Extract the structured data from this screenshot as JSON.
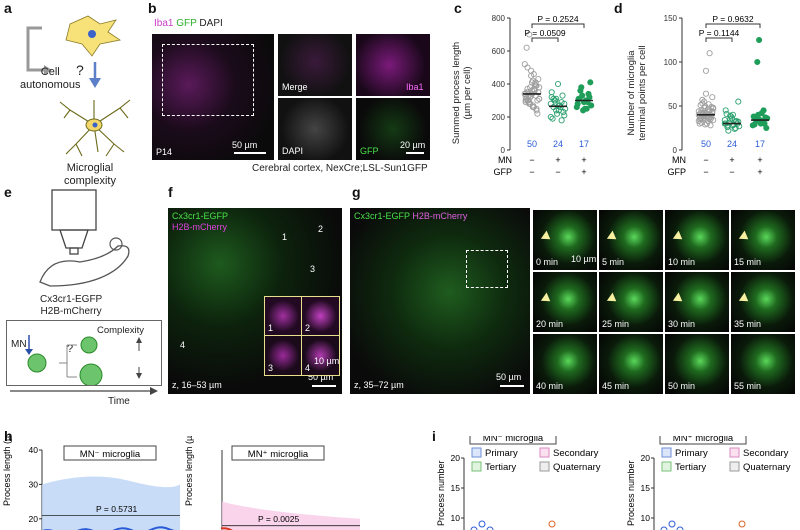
{
  "panels": {
    "a": {
      "label": "a",
      "cell_autonomous": [
        "Cell",
        "autonomous"
      ],
      "question": "?",
      "microglial_complexity": [
        "Microglial",
        "complexity"
      ]
    },
    "b": {
      "label": "b",
      "channels": {
        "iba1": "Iba1",
        "gfp": "GFP",
        "dapi": "DAPI"
      },
      "age": "P14",
      "scale_main": "50 µm",
      "merge": "Merge",
      "iba1": "Iba1",
      "dapi": "DAPI",
      "gfp": "GFP",
      "scale_small": "20 µm",
      "caption": "Cerebral cortex, NexCre;LSL-Sun1GFP"
    },
    "c": {
      "label": "c",
      "ylabel": [
        "Summed process length",
        "(µm per cell)"
      ],
      "p1": "P = 0.0509",
      "p2": "P = 0.2524",
      "ns": [
        "50",
        "24",
        "17"
      ],
      "mn_label": "MN",
      "gfp_label": "GFP",
      "mn_signs": [
        "−",
        "+",
        "+"
      ],
      "gfp_signs": [
        "−",
        "−",
        "+"
      ]
    },
    "d": {
      "label": "d",
      "ylabel": [
        "Number of microglia",
        "terminal points per cell"
      ],
      "p1": "P = 0.1144",
      "p2": "P = 0.9632",
      "ns": [
        "50",
        "24",
        "17"
      ],
      "mn_label": "MN",
      "gfp_label": "GFP",
      "mn_signs": [
        "−",
        "+",
        "+"
      ],
      "gfp_signs": [
        "−",
        "−",
        "+"
      ]
    },
    "e": {
      "label": "e",
      "mouse": [
        "Cx3cr1-EGFP",
        "H2B-mCherry"
      ],
      "mn": "MN",
      "complexity": "Complexity",
      "question": "?",
      "time": "Time"
    },
    "f": {
      "label": "f",
      "line1": "Cx3cr1-EGFP",
      "line2": "H2B-mCherry",
      "z": "z, 16–53 µm",
      "scale": "50 µm",
      "inset_scale": "10 µm",
      "insets": [
        "1",
        "2",
        "3",
        "4"
      ],
      "markers": [
        "1",
        "2",
        "3",
        "4"
      ]
    },
    "g": {
      "label": "g",
      "line1a": "Cx3cr1-EGFP",
      "line1b": "H2B-mCherry",
      "z": "z, 35–72 µm",
      "scale": "50 µm",
      "tile_scale": "10 µm",
      "times": [
        "0 min",
        "5 min",
        "10 min",
        "15 min",
        "20 min",
        "25 min",
        "30 min",
        "35 min",
        "40 min",
        "45 min",
        "50 min",
        "55 min"
      ]
    },
    "h": {
      "label": "h",
      "left_title": "MN⁻ microglia",
      "right_title": "MN⁺ microglia",
      "ylabel": "Process length (µm)",
      "p_left": "P = 0.5731",
      "p_right": "P = 0.0025",
      "ticks": [
        "40",
        "30",
        "20"
      ]
    },
    "i": {
      "label": "i",
      "left_title": "MN⁻ microglia",
      "right_title": "MN⁺ microglia",
      "ylabel": "Process number",
      "legend": [
        "Primary",
        "Secondary",
        "Tertiary",
        "Quaternary"
      ],
      "ticks": [
        "20",
        "15",
        "10"
      ]
    }
  },
  "chart_data": [
    {
      "type": "scatter",
      "panel": "c",
      "title": "",
      "ylabel": "Summed process length (µm per cell)",
      "ylim": [
        0,
        800
      ],
      "yticks": [
        0,
        200,
        400,
        600,
        800
      ],
      "categories": [
        "MN− GFP−",
        "MN+ GFP−",
        "MN+ GFP+"
      ],
      "series": [
        {
          "values": [
            520,
            300,
            380,
            260,
            410,
            350,
            290,
            330,
            450,
            370,
            240,
            310,
            620,
            280,
            360,
            400,
            220,
            340,
            500,
            320,
            270,
            390,
            430,
            300,
            350,
            330,
            460,
            250,
            380,
            310,
            290,
            410,
            360,
            300,
            340,
            370,
            280,
            420,
            330,
            350,
            320,
            300,
            480,
            260,
            390,
            310,
            350,
            700,
            340,
            360
          ]
        },
        {
          "values": [
            200,
            260,
            310,
            240,
            180,
            280,
            350,
            300,
            220,
            270,
            330,
            250,
            190,
            300,
            400,
            260,
            230,
            280,
            310,
            240,
            270,
            290,
            210,
            320
          ]
        },
        {
          "values": [
            260,
            310,
            330,
            250,
            290,
            410,
            280,
            360,
            240,
            300,
            340,
            270,
            310,
            380,
            290,
            250,
            320
          ]
        }
      ],
      "means": [
        340,
        265,
        300
      ],
      "n": [
        50,
        24,
        17
      ],
      "colors": [
        "#9e9e9e",
        "#2aa06e",
        "#1f9e5a"
      ]
    },
    {
      "type": "scatter",
      "panel": "d",
      "title": "",
      "ylabel": "Number of microglia terminal points per cell",
      "ylim": [
        0,
        150
      ],
      "yticks": [
        0,
        50,
        100,
        150
      ],
      "categories": [
        "MN− GFP−",
        "MN+ GFP−",
        "MN+ GFP+"
      ],
      "series": [
        {
          "values": [
            40,
            35,
            55,
            30,
            45,
            60,
            38,
            42,
            50,
            33,
            28,
            47,
            36,
            41,
            90,
            52,
            37,
            44,
            31,
            48,
            39,
            110,
            43,
            35,
            57,
            29,
            46,
            40,
            34,
            51,
            38,
            42,
            36,
            49,
            33,
            45,
            39,
            41,
            37,
            44,
            30,
            53,
            40,
            38,
            35,
            48,
            42,
            36,
            64,
            43
          ]
        },
        {
          "values": [
            30,
            28,
            35,
            40,
            25,
            32,
            45,
            22,
            38,
            29,
            33,
            27,
            41,
            31,
            36,
            24,
            30,
            34,
            26,
            39,
            28,
            32,
            55,
            30
          ]
        },
        {
          "values": [
            28,
            35,
            40,
            30,
            45,
            25,
            38,
            33,
            125,
            42,
            30,
            36,
            29,
            100,
            34,
            31,
            37
          ]
        }
      ],
      "means": [
        40,
        30,
        34
      ],
      "n": [
        50,
        24,
        17
      ],
      "colors": [
        "#9e9e9e",
        "#2aa06e",
        "#1f9e5a"
      ]
    }
  ],
  "colors": {
    "green": "#3ddc3d",
    "magenta": "#d33fd3",
    "blue_n": "#2a5bd6",
    "teal": "#2aa06e",
    "gray": "#9e9e9e",
    "line_blue": "#2a5bd6",
    "line_red": "#d9361f",
    "band_blue": "#bcd3f5",
    "band_pink": "#f7c9e6"
  }
}
